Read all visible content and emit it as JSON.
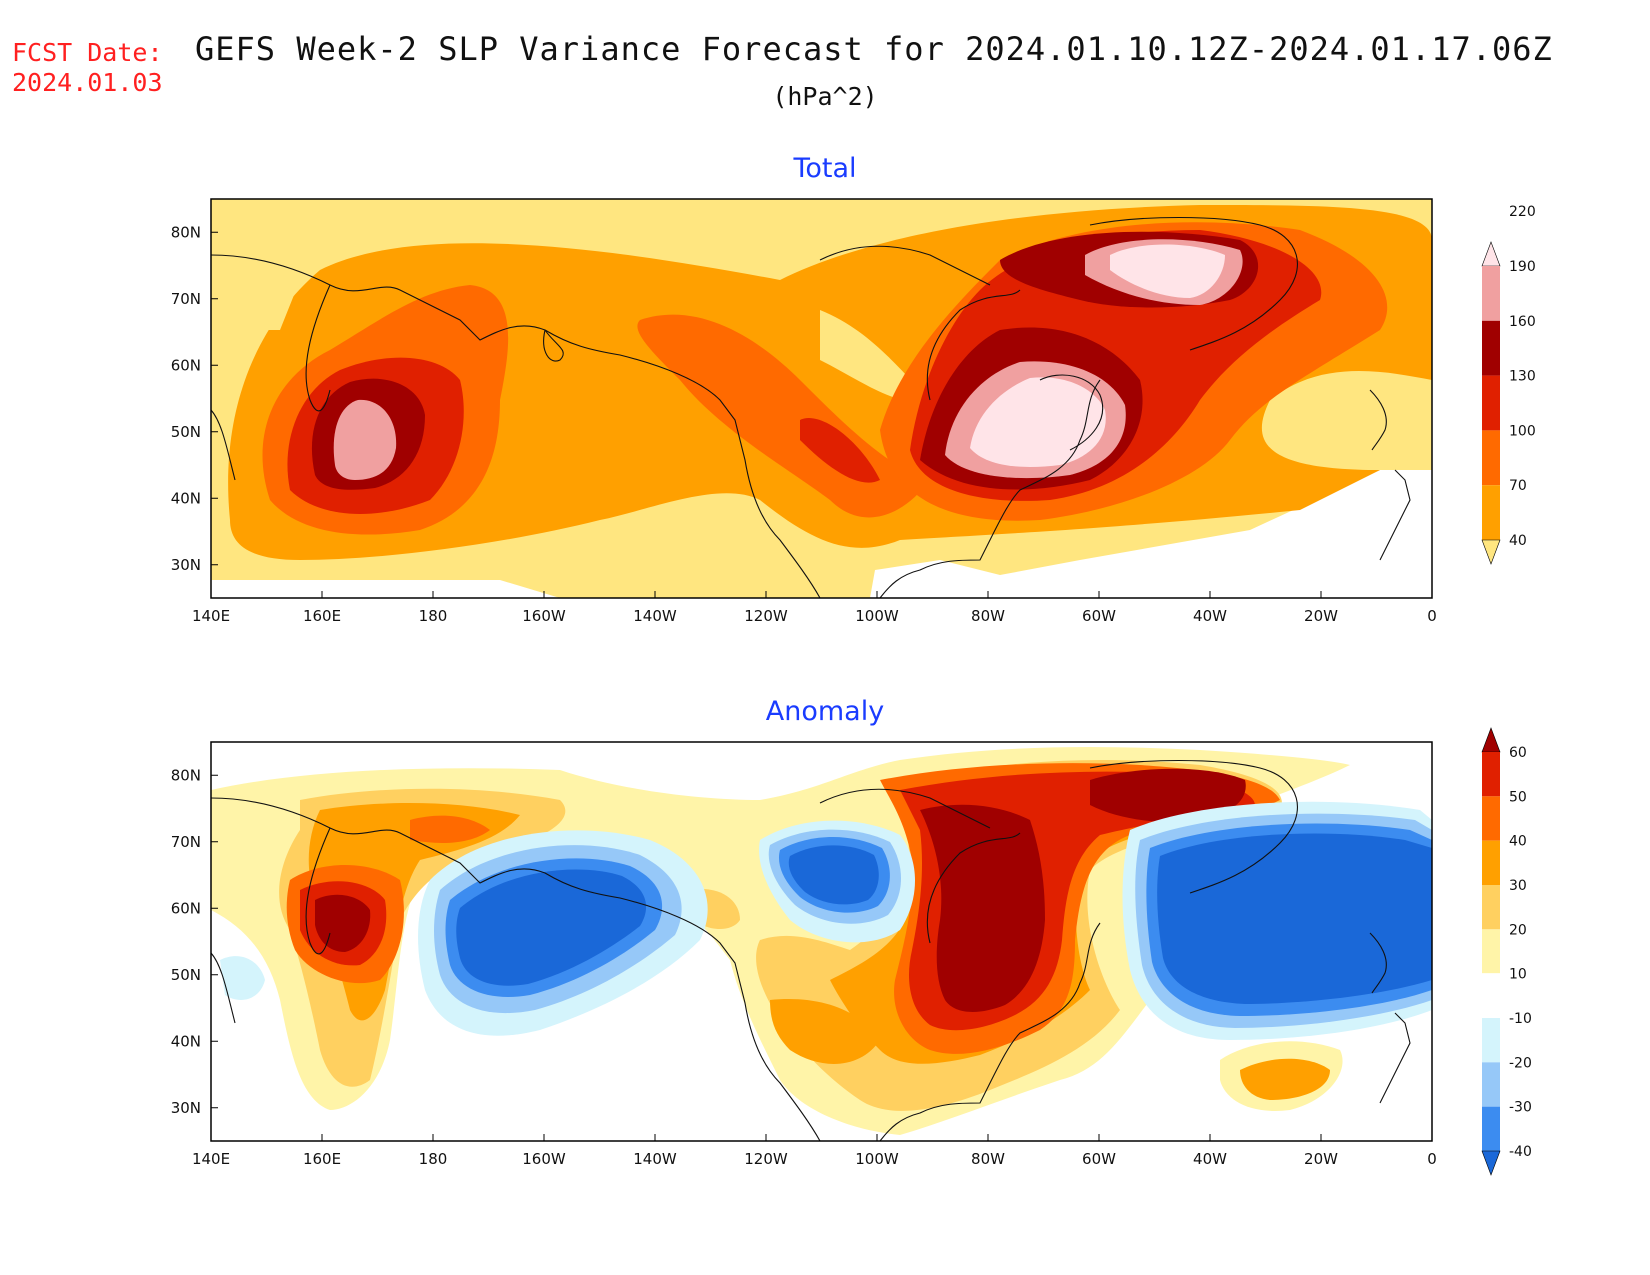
{
  "header": {
    "fcst_label": "FCST Date:",
    "fcst_date": "2024.01.03",
    "title": "GEFS Week-2 SLP Variance Forecast for 2024.01.10.12Z-2024.01.17.06Z",
    "units": "(hPa^2)"
  },
  "panels": {
    "total": {
      "title": "Total"
    },
    "anomaly": {
      "title": "Anomaly"
    }
  },
  "axes": {
    "lon_labels": [
      "140E",
      "160E",
      "180",
      "160W",
      "140W",
      "120W",
      "100W",
      "80W",
      "60W",
      "40W",
      "20W",
      "0"
    ],
    "lat_labels": [
      "30N",
      "40N",
      "50N",
      "60N",
      "70N",
      "80N"
    ]
  },
  "chart_data": [
    {
      "type": "heatmap",
      "title": "Total",
      "field": "SLP variance (hPa^2)",
      "colorbar_levels": [
        40,
        70,
        100,
        130,
        160,
        190,
        220
      ],
      "colorbar_colors": [
        "#ffe680",
        "#ffa000",
        "#ff6a00",
        "#e02000",
        "#a00000",
        "#f0a0a0",
        "#ffe4e8"
      ],
      "maxima": [
        {
          "region": "Northwest Pacific (near 155E, 48N)",
          "level": "190-220"
        },
        {
          "region": "Eastern Canada (near 65W, 52N)",
          "level": ">220"
        },
        {
          "region": "Greenland (near 40W, 73N)",
          "level": ">220"
        }
      ],
      "xlim": [
        "140E",
        "0"
      ],
      "ylim": [
        25,
        85
      ]
    },
    {
      "type": "heatmap",
      "title": "Anomaly",
      "field": "SLP variance anomaly (hPa^2)",
      "colorbar_levels": [
        -40,
        -30,
        -20,
        -10,
        10,
        20,
        30,
        40,
        50,
        60
      ],
      "colorbar_colors": [
        "#1a68d8",
        "#3c8cf0",
        "#96c8f8",
        "#d4f4fc",
        "#ffffff",
        "#fff4a8",
        "#ffd060",
        "#ffa000",
        "#ff6a00",
        "#e02000",
        "#a00000"
      ],
      "positive_centers": [
        {
          "region": "Kamchatka (near 155E, 53N)",
          "level": ">60"
        },
        {
          "region": "Eastern North America (80W-65W, 40N-65N)",
          "level": ">60"
        },
        {
          "region": "Greenland (near 45W, 77N)",
          "level": ">60"
        }
      ],
      "negative_centers": [
        {
          "region": "North Pacific (near 155W, 48N)",
          "level": "<-40"
        },
        {
          "region": "Western Canada (near 110W, 58N)",
          "level": "<-40"
        },
        {
          "region": "North Atlantic (near 30W, 55N)",
          "level": "<-40"
        }
      ],
      "xlim": [
        "140E",
        "0"
      ],
      "ylim": [
        25,
        85
      ]
    }
  ]
}
